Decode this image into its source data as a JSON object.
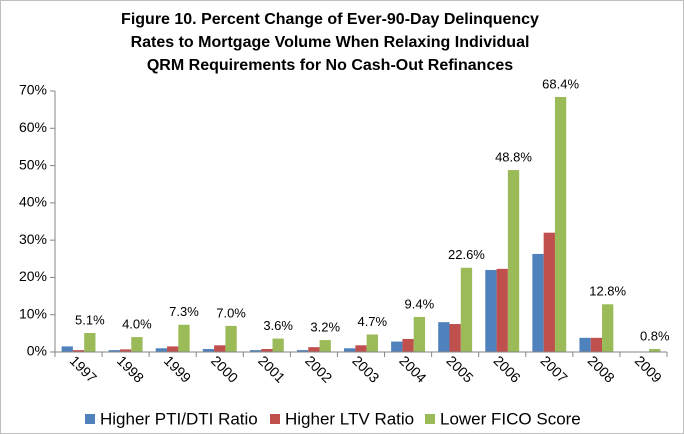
{
  "chart_data": {
    "type": "bar",
    "title": [
      "Figure 10. Percent Change of Ever-90-Day Delinquency",
      "Rates to Mortgage Volume  When Relaxing Individual",
      "QRM Requirements for No Cash-Out Refinances"
    ],
    "categories": [
      "1997",
      "1998",
      "1999",
      "2000",
      "2001",
      "2002",
      "2003",
      "2004",
      "2005",
      "2006",
      "2007",
      "2008",
      "2009"
    ],
    "series": [
      {
        "name": "Higher PTI/DTI Ratio",
        "color": "#4f81bd",
        "values": [
          1.5,
          0.5,
          1.0,
          0.8,
          0.5,
          0.5,
          1.0,
          2.8,
          8.0,
          22.0,
          26.3,
          3.8,
          0
        ]
      },
      {
        "name": "Higher LTV Ratio",
        "color": "#c0504d",
        "values": [
          0.5,
          0.7,
          1.5,
          1.8,
          0.8,
          1.3,
          1.8,
          3.5,
          7.5,
          22.3,
          32.0,
          3.8,
          0
        ]
      },
      {
        "name": "Lower FICO Score",
        "color": "#9bbb59",
        "values": [
          5.1,
          4.0,
          7.3,
          7.0,
          3.6,
          3.2,
          4.7,
          9.4,
          22.6,
          48.8,
          68.4,
          12.8,
          0.8
        ],
        "value_labels": [
          "5.1%",
          "4.0%",
          "7.3%",
          "7.0%",
          "3.6%",
          "3.2%",
          "4.7%",
          "9.4%",
          "22.6%",
          "48.8%",
          "68.4%",
          "12.8%",
          "0.8%"
        ]
      }
    ],
    "ylim": [
      0,
      70
    ],
    "yticks": [
      {
        "value": 0,
        "label": "0%"
      },
      {
        "value": 10,
        "label": "10%"
      },
      {
        "value": 20,
        "label": "20%"
      },
      {
        "value": 30,
        "label": "30%"
      },
      {
        "value": 40,
        "label": "40%"
      },
      {
        "value": 50,
        "label": "50%"
      },
      {
        "value": 60,
        "label": "60%"
      },
      {
        "value": 70,
        "label": "70%"
      }
    ],
    "grid": false,
    "legend": "bottom"
  }
}
